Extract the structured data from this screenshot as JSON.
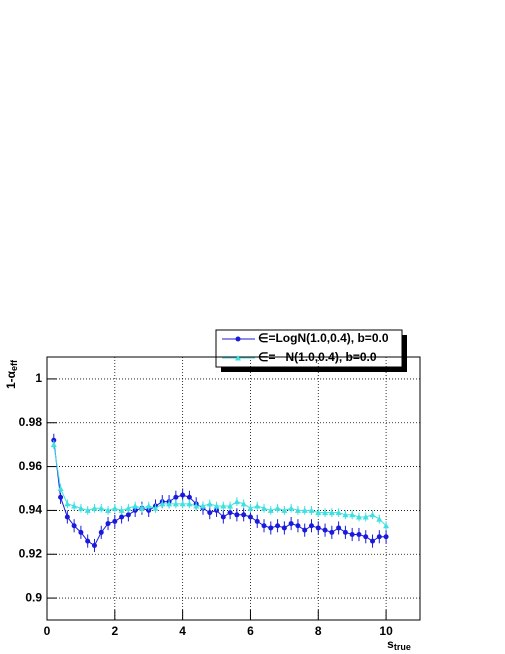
{
  "chart_data": {
    "type": "line",
    "x_label": "s",
    "x_label_sub": "true",
    "y_label": "1-α",
    "y_label_sub": "eff",
    "xlim": [
      0,
      11
    ],
    "ylim": [
      0.89,
      1.01
    ],
    "xticks": [
      0,
      2,
      4,
      6,
      8,
      10
    ],
    "yticks": [
      0.9,
      0.92,
      0.94,
      0.96,
      0.98,
      1
    ],
    "grid": true,
    "x": [
      0.2,
      0.4,
      0.6,
      0.8,
      1.0,
      1.2,
      1.4,
      1.6,
      1.8,
      2.0,
      2.2,
      2.4,
      2.6,
      2.8,
      3.0,
      3.2,
      3.4,
      3.6,
      3.8,
      4.0,
      4.2,
      4.4,
      4.6,
      4.8,
      5.0,
      5.2,
      5.4,
      5.6,
      5.8,
      6.0,
      6.2,
      6.4,
      6.6,
      6.8,
      7.0,
      7.2,
      7.4,
      7.6,
      7.8,
      8.0,
      8.2,
      8.4,
      8.6,
      8.8,
      9.0,
      9.2,
      9.4,
      9.6,
      9.8,
      10.0
    ],
    "series": [
      {
        "name": "∈=LogN(1.0,0.4), b=0.0",
        "color": "#1a1adc",
        "marker": "circle",
        "error": 0.003,
        "values": [
          0.972,
          0.946,
          0.937,
          0.933,
          0.93,
          0.926,
          0.924,
          0.93,
          0.934,
          0.935,
          0.937,
          0.938,
          0.94,
          0.941,
          0.94,
          0.942,
          0.944,
          0.944,
          0.946,
          0.947,
          0.946,
          0.943,
          0.941,
          0.939,
          0.94,
          0.937,
          0.939,
          0.938,
          0.938,
          0.937,
          0.935,
          0.933,
          0.932,
          0.933,
          0.932,
          0.934,
          0.933,
          0.931,
          0.933,
          0.932,
          0.931,
          0.93,
          0.932,
          0.93,
          0.929,
          0.929,
          0.928,
          0.926,
          0.928,
          0.928
        ]
      },
      {
        "name": "∈=   N(1.0,0.4), b=0.0",
        "color": "#40e0e0",
        "marker": "triangle",
        "error": 0.002,
        "values": [
          0.97,
          0.95,
          0.943,
          0.942,
          0.941,
          0.94,
          0.941,
          0.941,
          0.94,
          0.941,
          0.94,
          0.941,
          0.942,
          0.941,
          0.942,
          0.941,
          0.943,
          0.943,
          0.943,
          0.943,
          0.943,
          0.942,
          0.942,
          0.943,
          0.942,
          0.942,
          0.942,
          0.944,
          0.943,
          0.941,
          0.942,
          0.941,
          0.94,
          0.941,
          0.94,
          0.941,
          0.94,
          0.94,
          0.94,
          0.939,
          0.939,
          0.939,
          0.939,
          0.938,
          0.938,
          0.937,
          0.937,
          0.938,
          0.936,
          0.933
        ]
      }
    ]
  }
}
